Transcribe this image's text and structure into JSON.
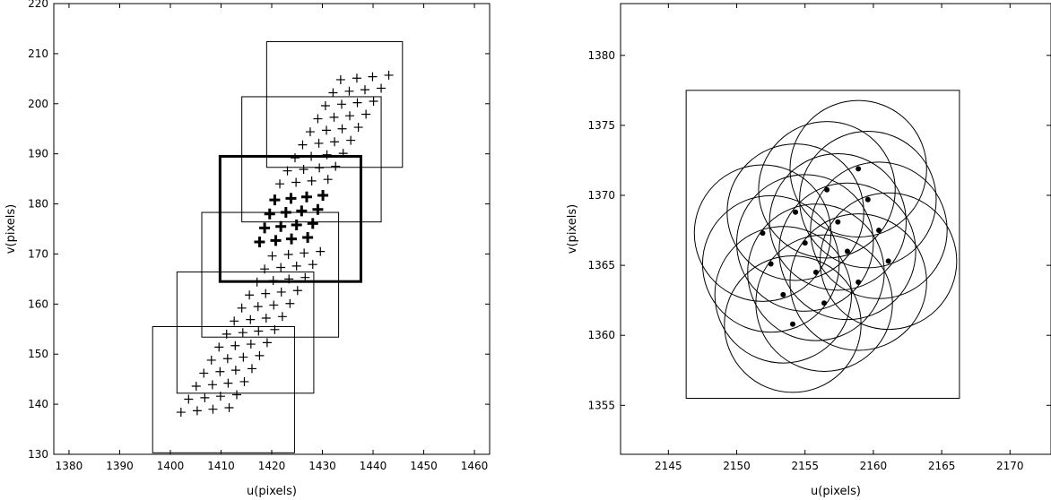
{
  "chart_data": [
    {
      "type": "scatter",
      "xlabel": "u(pixels)",
      "ylabel": "v(pixels)",
      "xlim": [
        1377,
        1463
      ],
      "ylim": [
        130,
        220
      ],
      "xticks": [
        1380,
        1390,
        1400,
        1410,
        1420,
        1430,
        1440,
        1450,
        1460
      ],
      "yticks": [
        130,
        140,
        150,
        160,
        170,
        180,
        190,
        200,
        210,
        220
      ],
      "marker": "plus",
      "points": [
        [
          1402.1,
          138.4
        ],
        [
          1405.3,
          138.7
        ],
        [
          1408.4,
          139.0
        ],
        [
          1411.6,
          139.3
        ],
        [
          1403.6,
          141.0
        ],
        [
          1406.8,
          141.3
        ],
        [
          1409.9,
          141.6
        ],
        [
          1413.1,
          141.9
        ],
        [
          1405.1,
          143.6
        ],
        [
          1408.3,
          143.9
        ],
        [
          1411.4,
          144.2
        ],
        [
          1414.6,
          144.5
        ],
        [
          1406.6,
          146.2
        ],
        [
          1409.8,
          146.5
        ],
        [
          1412.9,
          146.8
        ],
        [
          1416.1,
          147.1
        ],
        [
          1408.1,
          148.8
        ],
        [
          1411.3,
          149.1
        ],
        [
          1414.4,
          149.4
        ],
        [
          1417.6,
          149.7
        ],
        [
          1409.6,
          151.4
        ],
        [
          1412.8,
          151.7
        ],
        [
          1415.9,
          152.0
        ],
        [
          1419.1,
          152.3
        ],
        [
          1411.1,
          154.0
        ],
        [
          1414.3,
          154.3
        ],
        [
          1417.4,
          154.6
        ],
        [
          1420.6,
          154.9
        ],
        [
          1412.6,
          156.6
        ],
        [
          1415.8,
          156.9
        ],
        [
          1418.9,
          157.2
        ],
        [
          1422.1,
          157.5
        ],
        [
          1414.1,
          159.2
        ],
        [
          1417.3,
          159.5
        ],
        [
          1420.4,
          159.8
        ],
        [
          1423.6,
          160.1
        ],
        [
          1415.6,
          161.8
        ],
        [
          1418.8,
          162.1
        ],
        [
          1421.9,
          162.4
        ],
        [
          1425.1,
          162.7
        ],
        [
          1417.1,
          164.4
        ],
        [
          1420.3,
          164.7
        ],
        [
          1423.4,
          165.0
        ],
        [
          1426.6,
          165.3
        ],
        [
          1418.6,
          167.0
        ],
        [
          1421.8,
          167.3
        ],
        [
          1424.9,
          167.6
        ],
        [
          1428.1,
          167.9
        ],
        [
          1420.1,
          169.6
        ],
        [
          1423.3,
          169.9
        ],
        [
          1426.4,
          170.2
        ],
        [
          1429.6,
          170.5
        ],
        [
          1421.6,
          184.0
        ],
        [
          1424.8,
          184.3
        ],
        [
          1427.9,
          184.6
        ],
        [
          1431.1,
          184.9
        ],
        [
          1423.1,
          186.6
        ],
        [
          1426.3,
          186.9
        ],
        [
          1429.4,
          187.2
        ],
        [
          1432.6,
          187.5
        ],
        [
          1424.6,
          189.2
        ],
        [
          1427.8,
          189.5
        ],
        [
          1430.9,
          189.8
        ],
        [
          1434.1,
          190.1
        ],
        [
          1426.1,
          191.8
        ],
        [
          1429.3,
          192.1
        ],
        [
          1432.4,
          192.4
        ],
        [
          1435.6,
          192.7
        ],
        [
          1427.6,
          194.4
        ],
        [
          1430.8,
          194.7
        ],
        [
          1433.9,
          195.0
        ],
        [
          1437.1,
          195.3
        ],
        [
          1429.1,
          197.0
        ],
        [
          1432.3,
          197.3
        ],
        [
          1435.4,
          197.6
        ],
        [
          1438.6,
          197.9
        ],
        [
          1430.6,
          199.6
        ],
        [
          1433.8,
          199.9
        ],
        [
          1436.9,
          200.2
        ],
        [
          1440.1,
          200.5
        ],
        [
          1432.1,
          202.2
        ],
        [
          1435.3,
          202.5
        ],
        [
          1438.4,
          202.8
        ],
        [
          1441.6,
          203.1
        ],
        [
          1433.6,
          204.8
        ],
        [
          1436.8,
          205.1
        ],
        [
          1439.9,
          205.4
        ],
        [
          1443.1,
          205.7
        ]
      ],
      "highlight_points": [
        [
          1417.6,
          172.4
        ],
        [
          1420.8,
          172.7
        ],
        [
          1423.9,
          173.0
        ],
        [
          1427.1,
          173.3
        ],
        [
          1418.6,
          175.2
        ],
        [
          1421.8,
          175.5
        ],
        [
          1424.9,
          175.8
        ],
        [
          1428.1,
          176.1
        ],
        [
          1419.6,
          178.0
        ],
        [
          1422.8,
          178.3
        ],
        [
          1425.9,
          178.6
        ],
        [
          1429.1,
          178.9
        ],
        [
          1420.6,
          180.8
        ],
        [
          1423.8,
          181.1
        ],
        [
          1426.9,
          181.4
        ],
        [
          1430.1,
          181.7
        ]
      ],
      "boxes": [
        {
          "x": [
            1396.5,
            1424.5
          ],
          "y": [
            130.3,
            155.5
          ]
        },
        {
          "x": [
            1401.3,
            1428.3
          ],
          "y": [
            142.2,
            166.4
          ]
        },
        {
          "x": [
            1406.2,
            1433.2
          ],
          "y": [
            153.4,
            178.3
          ]
        },
        {
          "x": [
            1414.1,
            1441.6
          ],
          "y": [
            176.4,
            201.4
          ]
        },
        {
          "x": [
            1419.0,
            1445.8
          ],
          "y": [
            187.3,
            212.4
          ]
        }
      ],
      "highlight_box": {
        "x": [
          1409.8,
          1437.6
        ],
        "y": [
          164.5,
          189.5
        ]
      }
    },
    {
      "type": "scatter",
      "xlabel": "u(pixels)",
      "ylabel": "v(pixels)",
      "xlim": [
        2141.5,
        2173.0
      ],
      "ylim": [
        1351.5,
        1383.7
      ],
      "xticks": [
        2145,
        2150,
        2155,
        2160,
        2165,
        2170
      ],
      "yticks": [
        1355,
        1360,
        1365,
        1370,
        1375,
        1380
      ],
      "marker": "dot",
      "circle_radius": 5.0,
      "points": [
        [
          2154.1,
          1360.8
        ],
        [
          2156.4,
          1362.3
        ],
        [
          2153.4,
          1362.9
        ],
        [
          2158.9,
          1363.8
        ],
        [
          2155.8,
          1364.5
        ],
        [
          2152.5,
          1365.1
        ],
        [
          2161.1,
          1365.3
        ],
        [
          2158.1,
          1366.0
        ],
        [
          2155.0,
          1366.6
        ],
        [
          2151.9,
          1367.3
        ],
        [
          2160.4,
          1367.5
        ],
        [
          2157.4,
          1368.1
        ],
        [
          2154.3,
          1368.8
        ],
        [
          2159.6,
          1369.7
        ],
        [
          2156.6,
          1370.4
        ],
        [
          2158.9,
          1371.9
        ]
      ],
      "box": {
        "x": [
          2146.3,
          2166.3
        ],
        "y": [
          1355.5,
          1377.5
        ]
      }
    }
  ]
}
